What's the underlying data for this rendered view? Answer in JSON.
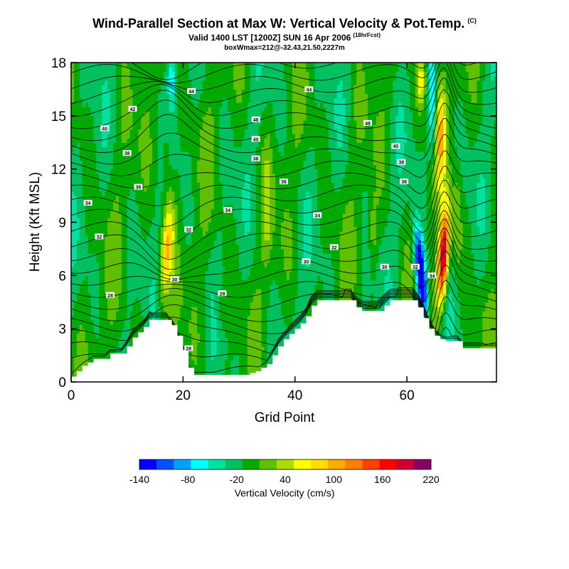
{
  "chart_data": {
    "type": "heatmap",
    "title": "Wind-Parallel Section at Max W: Vertical Velocity & Pot.Temp.",
    "title_tag": "(C)",
    "subtitle": "Valid 1400 LST [1200Z] SUN 16 Apr 2006",
    "subtitle_tag": "(18hrFcst)",
    "box_info": "boxWmax=212@-32.43,21.50,2227m",
    "xlabel": "Grid Point",
    "ylabel": "Height (Kft MSL)",
    "xlim": [
      0,
      76
    ],
    "ylim": [
      0,
      18
    ],
    "x_ticks": [
      0,
      20,
      40,
      60
    ],
    "y_ticks": [
      0,
      3,
      6,
      9,
      12,
      15,
      18
    ],
    "colorbar": {
      "label": "Vertical Velocity (cm/s)",
      "tick_labels": [
        "-140",
        "-80",
        "-20",
        "40",
        "100",
        "160",
        "220"
      ],
      "tick_values": [
        -140,
        -80,
        -20,
        40,
        100,
        160,
        220
      ],
      "colors": [
        "#0000ff",
        "#0050ff",
        "#00a0ff",
        "#00ffff",
        "#00e0a0",
        "#00c060",
        "#00aa00",
        "#60c000",
        "#aadd00",
        "#ffff00",
        "#ffdd00",
        "#ffaa00",
        "#ff7f00",
        "#ff4000",
        "#ff0000",
        "#cc0033",
        "#880066"
      ]
    },
    "terrain_kft": [
      [
        0,
        0.3
      ],
      [
        1,
        0.6
      ],
      [
        2,
        0.9
      ],
      [
        3,
        1.1
      ],
      [
        4,
        1.3
      ],
      [
        5,
        1.3
      ],
      [
        6,
        1.3
      ],
      [
        7,
        1.6
      ],
      [
        8,
        1.6
      ],
      [
        9,
        1.6
      ],
      [
        10,
        2.0
      ],
      [
        11,
        2.5
      ],
      [
        12,
        2.8
      ],
      [
        13,
        3.1
      ],
      [
        14,
        3.5
      ],
      [
        15,
        3.5
      ],
      [
        16,
        3.5
      ],
      [
        17,
        3.5
      ],
      [
        18,
        3.2
      ],
      [
        19,
        2.6
      ],
      [
        20,
        1.8
      ],
      [
        21,
        0.8
      ],
      [
        22,
        0.4
      ],
      [
        23,
        0.4
      ],
      [
        24,
        0.4
      ],
      [
        25,
        0.4
      ],
      [
        26,
        0.4
      ],
      [
        27,
        0.4
      ],
      [
        28,
        0.4
      ],
      [
        29,
        0.4
      ],
      [
        30,
        0.4
      ],
      [
        31,
        0.4
      ],
      [
        32,
        0.5
      ],
      [
        33,
        0.6
      ],
      [
        34,
        0.8
      ],
      [
        35,
        1.0
      ],
      [
        36,
        1.5
      ],
      [
        37,
        2.0
      ],
      [
        38,
        2.4
      ],
      [
        39,
        2.7
      ],
      [
        40,
        3.0
      ],
      [
        41,
        3.3
      ],
      [
        42,
        3.7
      ],
      [
        43,
        4.3
      ],
      [
        44,
        4.6
      ],
      [
        45,
        4.6
      ],
      [
        46,
        4.6
      ],
      [
        47,
        4.6
      ],
      [
        48,
        4.6
      ],
      [
        49,
        4.6
      ],
      [
        50,
        4.6
      ],
      [
        51,
        4.2
      ],
      [
        52,
        4.0
      ],
      [
        53,
        4.0
      ],
      [
        54,
        4.0
      ],
      [
        55,
        4.0
      ],
      [
        56,
        4.3
      ],
      [
        57,
        4.6
      ],
      [
        58,
        4.6
      ],
      [
        59,
        4.6
      ],
      [
        60,
        4.6
      ],
      [
        61,
        4.6
      ],
      [
        62,
        4.2
      ],
      [
        63,
        3.6
      ],
      [
        64,
        3.0
      ],
      [
        65,
        2.6
      ],
      [
        66,
        2.4
      ],
      [
        67,
        2.3
      ],
      [
        68,
        2.3
      ],
      [
        69,
        2.3
      ],
      [
        70,
        1.9
      ],
      [
        71,
        1.9
      ],
      [
        72,
        1.9
      ],
      [
        73,
        1.9
      ],
      [
        74,
        1.9
      ],
      [
        75,
        1.9
      ],
      [
        76,
        1.9
      ]
    ],
    "isentrope_labels": [
      {
        "text": "44",
        "x": 21.5,
        "y": 16.4
      },
      {
        "text": "44",
        "x": 42.5,
        "y": 16.5
      },
      {
        "text": "42",
        "x": 11.0,
        "y": 15.4
      },
      {
        "text": "40",
        "x": 6.0,
        "y": 14.3
      },
      {
        "text": "48",
        "x": 33.0,
        "y": 14.8
      },
      {
        "text": "48",
        "x": 53.0,
        "y": 14.6
      },
      {
        "text": "40",
        "x": 33.0,
        "y": 13.7
      },
      {
        "text": "40",
        "x": 58.0,
        "y": 13.3
      },
      {
        "text": "38",
        "x": 10.0,
        "y": 12.9
      },
      {
        "text": "38",
        "x": 33.0,
        "y": 12.6
      },
      {
        "text": "38",
        "x": 59.0,
        "y": 12.4
      },
      {
        "text": "36",
        "x": 12.0,
        "y": 11.0
      },
      {
        "text": "36",
        "x": 38.0,
        "y": 11.3
      },
      {
        "text": "36",
        "x": 59.5,
        "y": 11.3
      },
      {
        "text": "34",
        "x": 3.0,
        "y": 10.1
      },
      {
        "text": "34",
        "x": 28.0,
        "y": 9.7
      },
      {
        "text": "34",
        "x": 44.0,
        "y": 9.4
      },
      {
        "text": "32",
        "x": 5.0,
        "y": 8.2
      },
      {
        "text": "32",
        "x": 21.0,
        "y": 8.6
      },
      {
        "text": "32",
        "x": 47.0,
        "y": 7.6
      },
      {
        "text": "30",
        "x": 42.0,
        "y": 6.8
      },
      {
        "text": "30",
        "x": 56.0,
        "y": 6.5
      },
      {
        "text": "30",
        "x": 18.5,
        "y": 5.8
      },
      {
        "text": "28",
        "x": 7.0,
        "y": 4.9
      },
      {
        "text": "28",
        "x": 27.0,
        "y": 5.0
      },
      {
        "text": "28",
        "x": 21.0,
        "y": 1.9
      },
      {
        "text": "32",
        "x": 61.5,
        "y": 6.5
      },
      {
        "text": "34",
        "x": 64.5,
        "y": 6.0
      }
    ]
  }
}
